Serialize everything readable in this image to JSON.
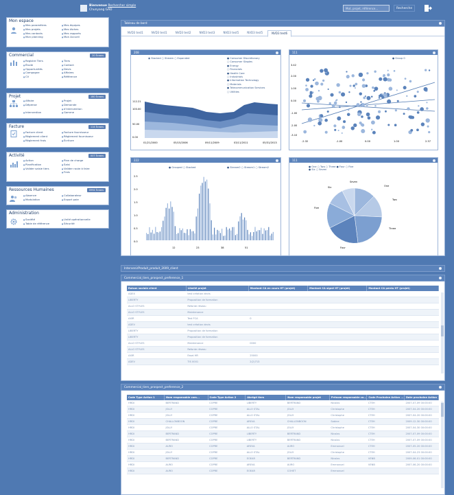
{
  "header": {
    "user_line1": "Bienvenue",
    "user_link": "Rechercher simple",
    "user_name": "Chunyang GAO",
    "search_placeholder": "Mot, projet, référence...",
    "search_button": "Recherche",
    "logout_icon": "logout-icon"
  },
  "sidebar": {
    "mon_espace": {
      "title": "Mon espace",
      "col1": [
        "Mes paramètres",
        "Mes projets",
        "Mes contacts",
        "Mon planning"
      ],
      "col2": [
        "Mes équipes",
        "Mes tâches",
        "Mes rapports",
        "Mon Accueil"
      ]
    },
    "commercial": {
      "title": "Commercial",
      "badge": "20 Écrans",
      "col1": [
        "Registre Tiers",
        "Étude",
        "Opportunités",
        "Campagne",
        "CV"
      ],
      "col2": [
        "Tiers",
        "Contact",
        "Devis",
        "Affaires",
        "Référence"
      ]
    },
    "projet": {
      "title": "Projet",
      "badge": "180 Écrans",
      "col1": [
        "Affaire",
        "Dépense",
        "",
        "Intervention"
      ],
      "col2": [
        "Projet",
        "Demande",
        "d'intervention",
        "Gamme"
      ]
    },
    "facture": {
      "title": "Facture",
      "badge": "114 Écrans",
      "col1": [
        "Facture client",
        "Règlement client",
        "Règlement frais"
      ],
      "col2": [
        "Facture fournisseur",
        "Règlement fournisseur",
        "Écriture"
      ]
    },
    "activite": {
      "title": "Activité",
      "badge": "007 Écrans",
      "col1": [
        "Action",
        "Planification",
        "Valider saisie tiers"
      ],
      "col2": [
        "Plan de charge",
        "Saisi",
        "Valider route à faire",
        "Frais"
      ]
    },
    "rh": {
      "title": "Ressources Humaines",
      "badge": "0994 Écrans",
      "col1": [
        "Absence",
        "Modulation"
      ],
      "col2": [
        "Collaborateur",
        "Export paie"
      ]
    },
    "admin": {
      "title": "Administration",
      "col1": [
        "Société",
        "Table de référence"
      ],
      "col2": [
        "Unité opérationnelle",
        "Sécurité"
      ]
    }
  },
  "dashboard": {
    "title": "Tableau de bord",
    "tabs": [
      "NVD3 test1",
      "NVD3 test1",
      "NVD3 test2",
      "NVD3 test3",
      "NVD3 test5",
      "NVD3 test5",
      "NVD3 test6"
    ],
    "w1": {
      "title": "208",
      "legend": [
        "Stacked",
        "Stream",
        "Expanded"
      ],
      "series": [
        "Consumer Discretionary",
        "Consumer Staples",
        "Energy",
        "Financials",
        "Health Care",
        "Industrials",
        "Information Technology",
        "Materials",
        "Telecommunication Services",
        "Utilities"
      ],
      "y_ticks": [
        "112.21",
        "100.00",
        "50.00",
        "0.00"
      ],
      "x_ticks": [
        "01/21/2000",
        "05/15/2006",
        "09/11/2009",
        "03/11/2011",
        "05/31/2013"
      ]
    },
    "w2": {
      "title": "111",
      "legend": [
        "Group 0"
      ],
      "y_ticks": [
        "3.42",
        "2.00",
        "1.00",
        "0.00",
        "-1.00",
        "-2.00",
        "-3.10"
      ],
      "x_ticks": [
        "-2.32",
        "-1.00",
        "0.00",
        "1.00",
        "2.37"
      ]
    },
    "w3": {
      "title": "222",
      "legend": [
        "Grouped",
        "Stacked"
      ],
      "series": [
        "Stream0",
        "Stream1",
        "Stream2"
      ],
      "y_ticks": [
        "2.5",
        "2.0",
        "1.5",
        "1.0",
        "0.5",
        "0.0"
      ],
      "x_ticks": [
        "12",
        "23",
        "38",
        "51"
      ]
    },
    "w4": {
      "title": "111",
      "legend": [
        "One",
        "Two",
        "Three",
        "Four",
        "Five",
        "Six",
        "Seven"
      ],
      "labels": [
        "One",
        "Two",
        "Three",
        "Four",
        "Five",
        "Six",
        "Seven"
      ]
    }
  },
  "collapsed_panel": {
    "title": "IntervenirProduit_produit_2009_client"
  },
  "table1": {
    "title": "Commercial_tiers_prospect_preference_1",
    "columns": [
      "Raison sociale client",
      "Libellé projet",
      "Montant CA en cours HT (projet)",
      "Montant CA signé HT (projet)",
      "Montant CA perdu HT (projet)"
    ],
    "rows": [
      [
        "ADEX",
        "test création devis",
        "",
        "",
        ""
      ],
      [
        "LIBERTY",
        "Proposition de formation",
        "",
        "",
        ""
      ],
      [
        "ALLO STYLES",
        "Refonte réseau",
        "",
        "",
        ""
      ],
      [
        "ALLO STYLES",
        "Maintenance",
        "",
        "",
        ""
      ],
      [
        "AXIR",
        "Test FCA",
        "0",
        "",
        ""
      ],
      [
        "ADEV",
        "test création devis",
        "",
        "",
        ""
      ],
      [
        "LIBERTY",
        "Proposition de formation",
        "",
        "",
        ""
      ],
      [
        "LIBERTY",
        "Proposition de formation",
        "",
        "",
        ""
      ],
      [
        "ALLO STYLES",
        "Maintenance",
        "0000",
        "",
        ""
      ],
      [
        "ALLO STYLES",
        "Refonte réseau",
        "",
        "",
        ""
      ],
      [
        "AXIR",
        "Essai HR",
        "25000",
        "",
        ""
      ],
      [
        "ADEV",
        "TIS 0001",
        "2(2)713",
        "",
        ""
      ]
    ]
  },
  "table2": {
    "title": "Commercial_tiers_prospect_preference_2",
    "columns": [
      "Code Type Action 1",
      "Nom responsable com...",
      "Code Type Action 2",
      "Abrégé tiers",
      "Nom responsable projet",
      "Prénom responsable co...",
      "Code Prochaine Action ...",
      "Date prochaine Action"
    ],
    "rows": [
      [
        "HRDI",
        "BERTRAND",
        "COPRE",
        "LIBERTY",
        "BERTRAND",
        "Nicolas",
        "CTEH",
        "2007-07-09 00:00:00"
      ],
      [
        "HRDI",
        "JOLLY",
        "COPRE",
        "ALLO STAL",
        "JOLLY",
        "Christophe",
        "CTEH",
        "2007-04-20 00:00:00"
      ],
      [
        "HRDI",
        "JOLLY",
        "COPRE",
        "ALLO STAL",
        "JOLLY",
        "Christophe",
        "CTEH",
        "2007-04-20 00:00:00"
      ],
      [
        "HRDI",
        "CHALLONBOON",
        "COPRE",
        "AREVA",
        "CHALLONBOON",
        "Sabine",
        "CTEH",
        "2009-12-30 00:00:00"
      ],
      [
        "HRDI",
        "JOLLY",
        "COPRE",
        "ALLO STAL",
        "JOLLY",
        "Christophe",
        "CTEH",
        "2007-04-30 00:00:00"
      ],
      [
        "HRDI",
        "BERTRAND",
        "COPRE",
        "LIBERTY",
        "BERTRAND",
        "Nicolas",
        "CTEH",
        "2007-07-09 00:00:00"
      ],
      [
        "HRDI",
        "BERTRAND",
        "COPRE",
        "LIBERTY",
        "BERTRAND",
        "Nicolas",
        "CTEH",
        "2007-07-09 00:00:00"
      ],
      [
        "HRDI",
        "AURO",
        "COPRE",
        "AREVA",
        "AURO",
        "Emmanuel",
        "CTEH",
        "2007-05-20 00:00:00"
      ],
      [
        "HRDI",
        "JOLLY",
        "COPRE",
        "ALLO STAL",
        "JOLLY",
        "Christophe",
        "CTEH",
        "2007-04-23 00:00:00"
      ],
      [
        "HRDI",
        "BERTRAND",
        "COPRE",
        "EOEAR",
        "BERTRAND",
        "Nicolas",
        "VENB",
        "2009-06-01 00:00:00"
      ],
      [
        "HRDI",
        "AURO",
        "COPRE",
        "AREVA",
        "AURO",
        "Emmanuel",
        "VENB",
        "2007-06-20 00:00:00"
      ],
      [
        "HRDI",
        "AURO",
        "COPRE",
        "EOEAR",
        "COHET",
        "Emmanuel",
        "",
        ""
      ]
    ]
  }
}
